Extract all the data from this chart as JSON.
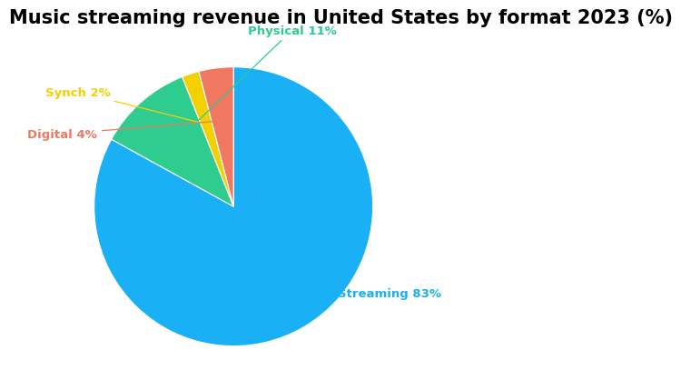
{
  "title": "Music streaming revenue in United States by format 2023 (%)",
  "slices": [
    83,
    11,
    2,
    4
  ],
  "labels": [
    "Streaming 83%",
    "Physical 11%",
    "Synch 2%",
    "Digital 4%"
  ],
  "label_colors": [
    "#1ab0f5",
    "#2ecc8e",
    "#f5d000",
    "#f07860"
  ],
  "colors": [
    "#1ab0f5",
    "#2ecc8e",
    "#f5d000",
    "#f07860"
  ],
  "startangle": 90,
  "title_fontsize": 15,
  "label_fontsize": 9.5,
  "background_color": "#ffffff"
}
